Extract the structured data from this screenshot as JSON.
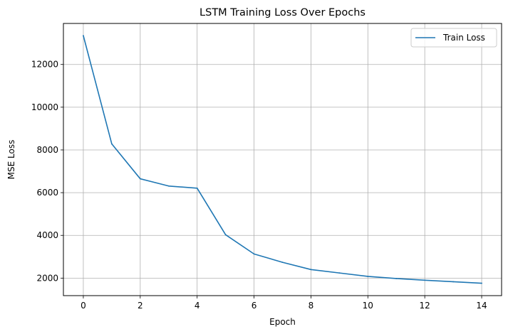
{
  "chart_data": {
    "type": "line",
    "title": "LSTM Training Loss Over Epochs",
    "xlabel": "Epoch",
    "ylabel": "MSE Loss",
    "x": [
      0,
      1,
      2,
      3,
      4,
      5,
      6,
      7,
      8,
      9,
      10,
      11,
      12,
      13,
      14
    ],
    "series": [
      {
        "name": "Train Loss",
        "color": "#1f77b4",
        "values": [
          13350,
          8280,
          6650,
          6310,
          6210,
          4030,
          3130,
          2740,
          2400,
          2240,
          2080,
          1980,
          1900,
          1830,
          1760
        ]
      }
    ],
    "xlim": [
      -0.7,
      14.7
    ],
    "ylim": [
      1180,
      13920
    ],
    "xticks": [
      0,
      2,
      4,
      6,
      8,
      10,
      12,
      14
    ],
    "yticks": [
      2000,
      4000,
      6000,
      8000,
      10000,
      12000
    ],
    "grid": true,
    "legend_position": "top-right"
  }
}
